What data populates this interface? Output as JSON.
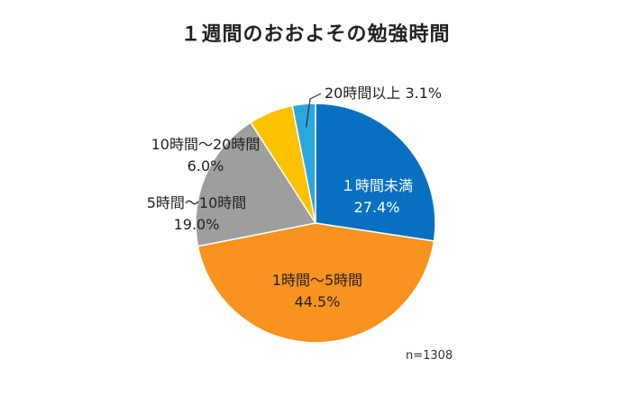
{
  "chart_data": {
    "type": "pie",
    "title": "１週間のおおよその勉強時間",
    "note": "n=1308",
    "slices": [
      {
        "label": "１時間未満",
        "value": 27.4,
        "value_label": "27.4%",
        "color": "#0870c1"
      },
      {
        "label": "1時間〜5時間",
        "value": 44.5,
        "value_label": "44.5%",
        "color": "#f7931e"
      },
      {
        "label": "5時間〜10時間",
        "value": 19.0,
        "value_label": "19.0%",
        "color": "#9e9e9e"
      },
      {
        "label": "10時間〜20時間",
        "value": 6.0,
        "value_label": "6.0%",
        "color": "#fcc200"
      },
      {
        "label": "20時間以上",
        "value": 3.1,
        "value_label": "3.1%",
        "color": "#2ba6df"
      }
    ],
    "start": "12 o'clock",
    "direction": "clockwise"
  }
}
